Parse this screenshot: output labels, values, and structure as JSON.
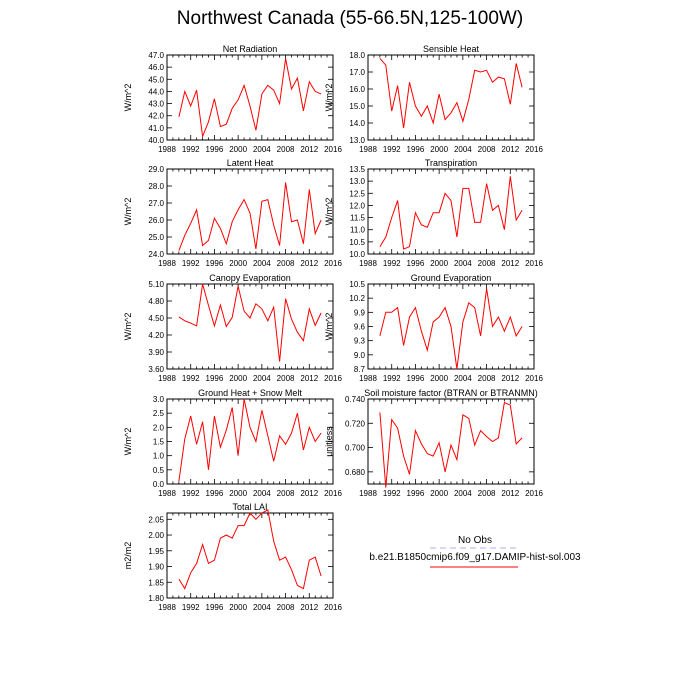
{
  "title": "Northwest Canada (55-66.5N,125-100W)",
  "legend": {
    "obs_label": "No Obs",
    "model_label": "b.e21.B1850cmip6.f09_g17.DAMIP-hist-sol.003",
    "obs_color": "#b0b0ee",
    "model_color": "#ff0000"
  },
  "chart_data": [
    {
      "type": "line",
      "title": "Net Radiation",
      "ylabel": "W/m^2",
      "x": [
        1990,
        1991,
        1992,
        1993,
        1994,
        1995,
        1996,
        1997,
        1998,
        1999,
        2000,
        2001,
        2002,
        2003,
        2004,
        2005,
        2006,
        2007,
        2008,
        2009,
        2010,
        2011,
        2012,
        2013,
        2014
      ],
      "series": [
        {
          "values": [
            41.9,
            44.0,
            42.8,
            44.1,
            40.3,
            41.5,
            43.4,
            41.1,
            41.3,
            42.6,
            43.3,
            44.5,
            42.8,
            40.8,
            43.8,
            44.5,
            44.1,
            43.0,
            46.7,
            44.2,
            45.1,
            42.4,
            44.8,
            44.0,
            43.8
          ]
        }
      ],
      "xlim": [
        1988,
        2016
      ],
      "xticks": [
        "1988",
        "1992",
        "1996",
        "2000",
        "2004",
        "2008",
        "2012",
        "2016"
      ],
      "ylim": [
        40.0,
        47.0
      ],
      "yticks": [
        "40.0",
        "41.0",
        "42.0",
        "43.0",
        "44.0",
        "45.0",
        "46.0",
        "47.0"
      ],
      "grid": false
    },
    {
      "type": "line",
      "title": "Sensible Heat",
      "ylabel": "W/m^2",
      "x": [
        1990,
        1991,
        1992,
        1993,
        1994,
        1995,
        1996,
        1997,
        1998,
        1999,
        2000,
        2001,
        2002,
        2003,
        2004,
        2005,
        2006,
        2007,
        2008,
        2009,
        2010,
        2011,
        2012,
        2013,
        2014
      ],
      "series": [
        {
          "values": [
            17.8,
            17.4,
            14.7,
            16.2,
            13.7,
            16.4,
            15.0,
            14.4,
            15.0,
            14.0,
            15.7,
            14.2,
            14.6,
            15.2,
            14.1,
            15.4,
            17.1,
            17.0,
            17.1,
            16.4,
            16.7,
            16.6,
            15.1,
            17.5,
            16.1
          ]
        }
      ],
      "xlim": [
        1988,
        2016
      ],
      "xticks": [
        "1988",
        "1992",
        "1996",
        "2000",
        "2004",
        "2008",
        "2012",
        "2016"
      ],
      "ylim": [
        13.0,
        18.0
      ],
      "yticks": [
        "13.0",
        "14.0",
        "15.0",
        "16.0",
        "17.0",
        "18.0"
      ],
      "grid": false
    },
    {
      "type": "line",
      "title": "Latent Heat",
      "ylabel": "W/m^2",
      "x": [
        1990,
        1991,
        1992,
        1993,
        1994,
        1995,
        1996,
        1997,
        1998,
        1999,
        2000,
        2001,
        2002,
        2003,
        2004,
        2005,
        2006,
        2007,
        2008,
        2009,
        2010,
        2011,
        2012,
        2013,
        2014
      ],
      "series": [
        {
          "values": [
            24.2,
            25.1,
            25.8,
            26.6,
            24.5,
            24.8,
            26.1,
            25.5,
            24.6,
            25.9,
            26.6,
            27.2,
            26.4,
            24.3,
            27.1,
            27.2,
            25.7,
            24.5,
            28.2,
            25.9,
            26.0,
            24.6,
            27.8,
            25.2,
            26.0
          ]
        }
      ],
      "xlim": [
        1988,
        2016
      ],
      "xticks": [
        "1988",
        "1992",
        "1996",
        "2000",
        "2004",
        "2008",
        "2012",
        "2016"
      ],
      "ylim": [
        24.0,
        29.0
      ],
      "yticks": [
        "24.0",
        "25.0",
        "26.0",
        "27.0",
        "28.0",
        "29.0"
      ],
      "grid": false
    },
    {
      "type": "line",
      "title": "Transpiration",
      "ylabel": "W/m^2",
      "x": [
        1990,
        1991,
        1992,
        1993,
        1994,
        1995,
        1996,
        1997,
        1998,
        1999,
        2000,
        2001,
        2002,
        2003,
        2004,
        2005,
        2006,
        2007,
        2008,
        2009,
        2010,
        2011,
        2012,
        2013,
        2014
      ],
      "series": [
        {
          "values": [
            10.3,
            10.7,
            11.5,
            12.2,
            10.2,
            10.3,
            11.7,
            11.2,
            11.1,
            11.7,
            11.7,
            12.5,
            12.2,
            10.7,
            12.7,
            12.7,
            11.3,
            11.3,
            12.9,
            11.8,
            12.0,
            11.0,
            13.2,
            11.4,
            11.8
          ]
        }
      ],
      "xlim": [
        1988,
        2016
      ],
      "xticks": [
        "1988",
        "1992",
        "1996",
        "2000",
        "2004",
        "2008",
        "2012",
        "2016"
      ],
      "ylim": [
        10.0,
        13.5
      ],
      "yticks": [
        "10.0",
        "10.5",
        "11.0",
        "11.5",
        "12.0",
        "12.5",
        "13.0",
        "13.5"
      ],
      "grid": false
    },
    {
      "type": "line",
      "title": "Canopy Evaporation",
      "ylabel": "W/m^2",
      "x": [
        1990,
        1991,
        1992,
        1993,
        1994,
        1995,
        1996,
        1997,
        1998,
        1999,
        2000,
        2001,
        2002,
        2003,
        2004,
        2005,
        2006,
        2007,
        2008,
        2009,
        2010,
        2011,
        2012,
        2013,
        2014
      ],
      "series": [
        {
          "values": [
            4.52,
            4.45,
            4.41,
            4.36,
            5.1,
            4.72,
            4.36,
            4.73,
            4.35,
            4.51,
            5.06,
            4.62,
            4.5,
            4.75,
            4.66,
            4.45,
            4.69,
            3.73,
            4.84,
            4.48,
            4.25,
            4.1,
            4.66,
            4.37,
            4.59
          ]
        }
      ],
      "xlim": [
        1988,
        2016
      ],
      "xticks": [
        "1988",
        "1992",
        "1996",
        "2000",
        "2004",
        "2008",
        "2012",
        "2016"
      ],
      "ylim": [
        3.6,
        5.1
      ],
      "yticks": [
        "3.60",
        "3.90",
        "4.20",
        "4.50",
        "4.80",
        "5.10"
      ],
      "grid": false
    },
    {
      "type": "line",
      "title": "Ground Evaporation",
      "ylabel": "W/m^2",
      "x": [
        1990,
        1991,
        1992,
        1993,
        1994,
        1995,
        1996,
        1997,
        1998,
        1999,
        2000,
        2001,
        2002,
        2003,
        2004,
        2005,
        2006,
        2007,
        2008,
        2009,
        2010,
        2011,
        2012,
        2013,
        2014
      ],
      "series": [
        {
          "values": [
            9.4,
            9.9,
            9.9,
            10.0,
            9.2,
            9.8,
            10.0,
            9.5,
            9.1,
            9.7,
            9.8,
            10.0,
            9.6,
            8.7,
            9.7,
            10.1,
            10.0,
            9.4,
            10.4,
            9.6,
            9.8,
            9.5,
            9.8,
            9.4,
            9.6
          ]
        }
      ],
      "xlim": [
        1988,
        2016
      ],
      "xticks": [
        "1988",
        "1992",
        "1996",
        "2000",
        "2004",
        "2008",
        "2012",
        "2016"
      ],
      "ylim": [
        8.7,
        10.5
      ],
      "yticks": [
        "8.7",
        "9.0",
        "9.3",
        "9.6",
        "9.9",
        "10.2",
        "10.5"
      ],
      "grid": false
    },
    {
      "type": "line",
      "title": "Ground Heat + Snow Melt",
      "ylabel": "W/m^2",
      "x": [
        1990,
        1991,
        1992,
        1993,
        1994,
        1995,
        1996,
        1997,
        1998,
        1999,
        2000,
        2001,
        2002,
        2003,
        2004,
        2005,
        2006,
        2007,
        2008,
        2009,
        2010,
        2011,
        2012,
        2013,
        2014
      ],
      "series": [
        {
          "values": [
            0.1,
            1.6,
            2.4,
            1.4,
            2.2,
            0.5,
            2.4,
            1.3,
            1.9,
            2.7,
            1.0,
            3.0,
            2.0,
            1.5,
            2.6,
            1.7,
            0.8,
            1.7,
            1.4,
            1.8,
            2.5,
            1.2,
            2.0,
            1.5,
            1.8
          ]
        }
      ],
      "xlim": [
        1988,
        2016
      ],
      "xticks": [
        "1988",
        "1992",
        "1996",
        "2000",
        "2004",
        "2008",
        "2012",
        "2016"
      ],
      "ylim": [
        0.0,
        3.0
      ],
      "yticks": [
        "0.0",
        "0.5",
        "1.0",
        "1.5",
        "2.0",
        "2.5",
        "3.0"
      ],
      "grid": false
    },
    {
      "type": "line",
      "title": "Soil moisture factor (BTRAN or BTRANMN)",
      "ylabel": "unitless",
      "x": [
        1990,
        1991,
        1992,
        1993,
        1994,
        1995,
        1996,
        1997,
        1998,
        1999,
        2000,
        2001,
        2002,
        2003,
        2004,
        2005,
        2006,
        2007,
        2008,
        2009,
        2010,
        2011,
        2012,
        2013,
        2014
      ],
      "series": [
        {
          "values": [
            0.729,
            0.667,
            0.723,
            0.716,
            0.693,
            0.678,
            0.714,
            0.703,
            0.695,
            0.693,
            0.704,
            0.68,
            0.702,
            0.69,
            0.727,
            0.724,
            0.702,
            0.714,
            0.709,
            0.705,
            0.708,
            0.737,
            0.735,
            0.703,
            0.708
          ]
        }
      ],
      "xlim": [
        1988,
        2016
      ],
      "xticks": [
        "1988",
        "1992",
        "1996",
        "2000",
        "2004",
        "2008",
        "2012",
        "2016"
      ],
      "ylim": [
        0.67,
        0.74
      ],
      "yticks": [
        "0.680",
        "0.700",
        "0.720",
        "0.740"
      ],
      "grid": false
    },
    {
      "type": "line",
      "title": "Total LAI",
      "ylabel": "m2/m2",
      "x": [
        1990,
        1991,
        1992,
        1993,
        1994,
        1995,
        1996,
        1997,
        1998,
        1999,
        2000,
        2001,
        2002,
        2003,
        2004,
        2005,
        2006,
        2007,
        2008,
        2009,
        2010,
        2011,
        2012,
        2013,
        2014
      ],
      "series": [
        {
          "values": [
            1.86,
            1.83,
            1.88,
            1.91,
            1.97,
            1.91,
            1.92,
            1.99,
            2.0,
            1.99,
            2.03,
            2.03,
            2.07,
            2.05,
            2.07,
            2.08,
            1.98,
            1.92,
            1.93,
            1.89,
            1.84,
            1.83,
            1.92,
            1.93,
            1.87
          ]
        }
      ],
      "xlim": [
        1988,
        2016
      ],
      "xticks": [
        "1988",
        "1992",
        "1996",
        "2000",
        "2004",
        "2008",
        "2012",
        "2016"
      ],
      "ylim": [
        1.8,
        2.07
      ],
      "yticks": [
        "1.80",
        "1.85",
        "1.90",
        "1.95",
        "2.00",
        "2.05"
      ],
      "grid": false
    }
  ]
}
